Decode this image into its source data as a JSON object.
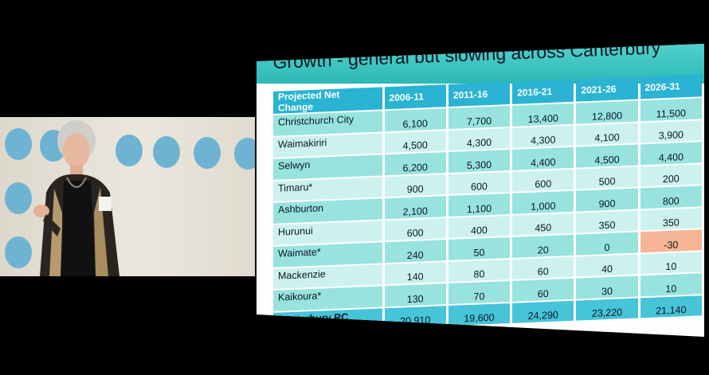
{
  "slide": {
    "title": "Growth - general but slowing across Canterbury",
    "colors": {
      "title_bar": "#2cb9b6",
      "header": "#2ab3d2",
      "row_a": "#98e3de",
      "row_b": "#cdf1ef",
      "negative_cell": "#f6b596",
      "total_row": "#46c4d8"
    },
    "table": {
      "headers": [
        "Projected Net Change",
        "2006-11",
        "2011-16",
        "2016-21",
        "2021-26",
        "2026-31"
      ],
      "rows": [
        {
          "name": "Christchurch City",
          "values": [
            "6,100",
            "7,700",
            "13,400",
            "12,800",
            "11,500"
          ]
        },
        {
          "name": "Waimakiriri",
          "values": [
            "4,500",
            "4,300",
            "4,300",
            "4,100",
            "3,900"
          ]
        },
        {
          "name": "Selwyn",
          "values": [
            "6,200",
            "5,300",
            "4,400",
            "4,500",
            "4,400"
          ]
        },
        {
          "name": "Timaru*",
          "values": [
            "900",
            "600",
            "600",
            "500",
            "200"
          ]
        },
        {
          "name": "Ashburton",
          "values": [
            "2,100",
            "1,100",
            "1,000",
            "900",
            "800"
          ]
        },
        {
          "name": "Hurunui",
          "values": [
            "600",
            "400",
            "450",
            "350",
            "350"
          ]
        },
        {
          "name": "Waimate*",
          "values": [
            "240",
            "50",
            "20",
            "0",
            "-30"
          ]
        },
        {
          "name": "Mackenzie",
          "values": [
            "140",
            "80",
            "60",
            "40",
            "10"
          ]
        },
        {
          "name": "Kaikoura*",
          "values": [
            "130",
            "70",
            "60",
            "30",
            "10"
          ]
        },
        {
          "name": "Canterbury RC",
          "values": [
            "20,910",
            "19,600",
            "24,290",
            "23,220",
            "21,140"
          ]
        }
      ]
    }
  }
}
